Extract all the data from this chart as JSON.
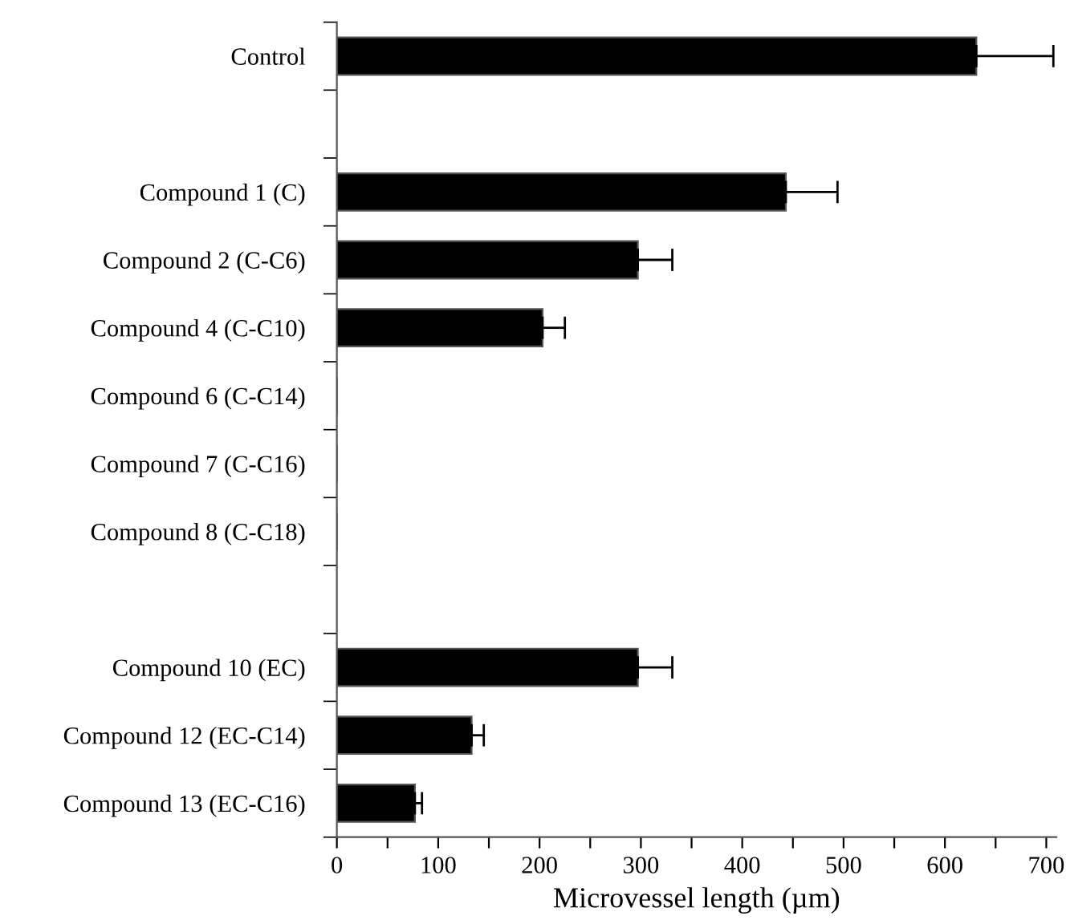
{
  "chart_data": {
    "type": "bar",
    "orientation": "horizontal",
    "xlabel": "Microvessel length (µm)",
    "categories": [
      "Control",
      null,
      "Compound 1 (C)",
      "Compound 2 (C-C6)",
      "Compound 4 (C-C10)",
      "Compound 6 (C-C14)",
      "Compound 7 (C-C16)",
      "Compound 8 (C-C18)",
      null,
      "Compound 10 (EC)",
      "Compound 12 (EC-C14)",
      "Compound 13 (EC-C16)"
    ],
    "values": [
      631,
      null,
      443,
      297,
      203,
      0,
      0,
      0,
      null,
      297,
      133,
      77
    ],
    "errors": [
      [
        631,
        707
      ],
      null,
      [
        443,
        494
      ],
      [
        297,
        331
      ],
      [
        203,
        225
      ],
      null,
      null,
      null,
      null,
      [
        297,
        331
      ],
      [
        133,
        145
      ],
      [
        77,
        84
      ]
    ],
    "color": "#000000",
    "xlim": [
      0,
      710
    ],
    "xticks": [
      0,
      {
        "value": 50,
        "label": null
      },
      100,
      {
        "value": 150,
        "label": null
      },
      200,
      {
        "value": 250,
        "label": null
      },
      300,
      {
        "value": 350,
        "label": null
      },
      400,
      {
        "value": 450,
        "label": null
      },
      500,
      {
        "value": 550,
        "label": null
      },
      600,
      {
        "value": 650,
        "label": null
      },
      700
    ],
    "grid": false
  }
}
